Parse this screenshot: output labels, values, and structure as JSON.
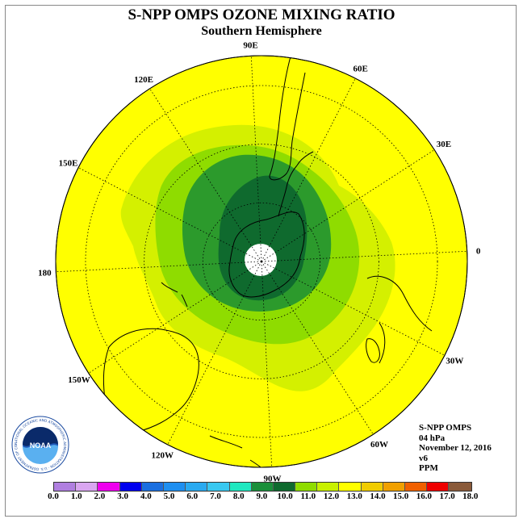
{
  "title": "S-NPP OMPS OZONE MIXING RATIO",
  "subtitle": "Southern Hemisphere",
  "longitude_labels": [
    {
      "text": "90W",
      "lon": -90
    },
    {
      "text": "60W",
      "lon": -60
    },
    {
      "text": "30W",
      "lon": -30
    },
    {
      "text": "0",
      "lon": 0
    },
    {
      "text": "30E",
      "lon": 30
    },
    {
      "text": "60E",
      "lon": 60
    },
    {
      "text": "90E",
      "lon": 90
    },
    {
      "text": "120E",
      "lon": 120
    },
    {
      "text": "150E",
      "lon": 150
    },
    {
      "text": "180",
      "lon": 180
    },
    {
      "text": "150W",
      "lon": -150
    },
    {
      "text": "120W",
      "lon": -120
    }
  ],
  "info": {
    "product": "S-NPP OMPS",
    "level": "04 hPa",
    "date": "November 12, 2016",
    "version": "v6",
    "units": "PPM"
  },
  "colorbar": {
    "levels": [
      "0.0",
      "1.0",
      "2.0",
      "3.0",
      "4.0",
      "5.0",
      "6.0",
      "7.0",
      "8.0",
      "9.0",
      "10.0",
      "11.0",
      "12.0",
      "13.0",
      "14.0",
      "15.0",
      "16.0",
      "17.0",
      "18.0"
    ],
    "colors": [
      "#b07fe0",
      "#d9a6f0",
      "#ee00ee",
      "#0000ee",
      "#1a6fe0",
      "#1e8ff0",
      "#2aaaf0",
      "#39c8f0",
      "#20e8c0",
      "#1a8f3a",
      "#0f6a2e",
      "#8fdc00",
      "#c8f000",
      "#ffff00",
      "#f0cc00",
      "#f0a000",
      "#f06000",
      "#ee0000",
      "#8a5a3a"
    ]
  },
  "logo": {
    "text": "NOAA",
    "ring_text": "NATIONAL OCEANIC AND ATMOSPHERIC ADMINISTRATION · U.S. DEPARTMENT OF COMMERCE"
  },
  "map_colors": {
    "background": "#ffff00",
    "c12": "#d4f000",
    "c11": "#8fdc00",
    "c10": "#2c9a2c",
    "c9": "#0f6a2e",
    "pole": "#ffffff"
  }
}
